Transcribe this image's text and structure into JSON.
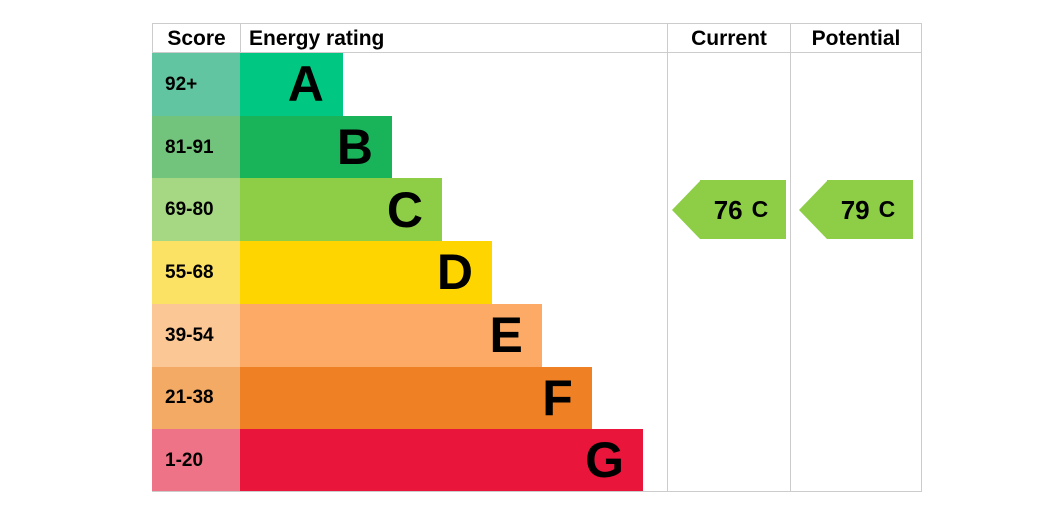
{
  "headers": {
    "score": "Score",
    "rating": "Energy rating",
    "current": "Current",
    "potential": "Potential"
  },
  "bands": [
    {
      "score": "92+",
      "letter": "A",
      "band_color": "#00c781",
      "score_color": "#62c5a1",
      "width_pct": 24.1
    },
    {
      "score": "81-91",
      "letter": "B",
      "band_color": "#19b459",
      "score_color": "#72c47d",
      "width_pct": 35.6
    },
    {
      "score": "69-80",
      "letter": "C",
      "band_color": "#8dce46",
      "score_color": "#a6d782",
      "width_pct": 47.3
    },
    {
      "score": "55-68",
      "letter": "D",
      "band_color": "#ffd500",
      "score_color": "#fbe264",
      "width_pct": 59.0
    },
    {
      "score": "39-54",
      "letter": "E",
      "band_color": "#fcaa65",
      "score_color": "#fbc795",
      "width_pct": 70.7
    },
    {
      "score": "21-38",
      "letter": "F",
      "band_color": "#ef8023",
      "score_color": "#f2aa64",
      "width_pct": 82.4
    },
    {
      "score": "1-20",
      "letter": "G",
      "band_color": "#e9153b",
      "score_color": "#ef7386",
      "width_pct": 94.4
    }
  ],
  "ratings": {
    "current": {
      "value": "76",
      "letter": "C",
      "band_index": 2,
      "arrow_color": "#8dce46"
    },
    "potential": {
      "value": "79",
      "letter": "C",
      "band_index": 2,
      "arrow_color": "#8dce46"
    }
  },
  "colors": {
    "border": "#cccccc",
    "text": "#000000",
    "background": "#ffffff"
  },
  "chart_data": {
    "type": "bar",
    "title": "Energy rating",
    "categories": [
      "A",
      "B",
      "C",
      "D",
      "E",
      "F",
      "G"
    ],
    "score_ranges": [
      "92+",
      "81-91",
      "69-80",
      "55-68",
      "39-54",
      "21-38",
      "1-20"
    ],
    "band_colors": [
      "#00c781",
      "#19b459",
      "#8dce46",
      "#ffd500",
      "#fcaa65",
      "#ef8023",
      "#e9153b"
    ],
    "values": [
      24.1,
      35.6,
      47.3,
      59.0,
      70.7,
      82.4,
      94.4
    ],
    "value_unit": "percent-of-rating-column-width",
    "current": {
      "value": 76,
      "rating": "C"
    },
    "potential": {
      "value": 79,
      "rating": "C"
    },
    "legend_position": "none",
    "grid": false
  }
}
